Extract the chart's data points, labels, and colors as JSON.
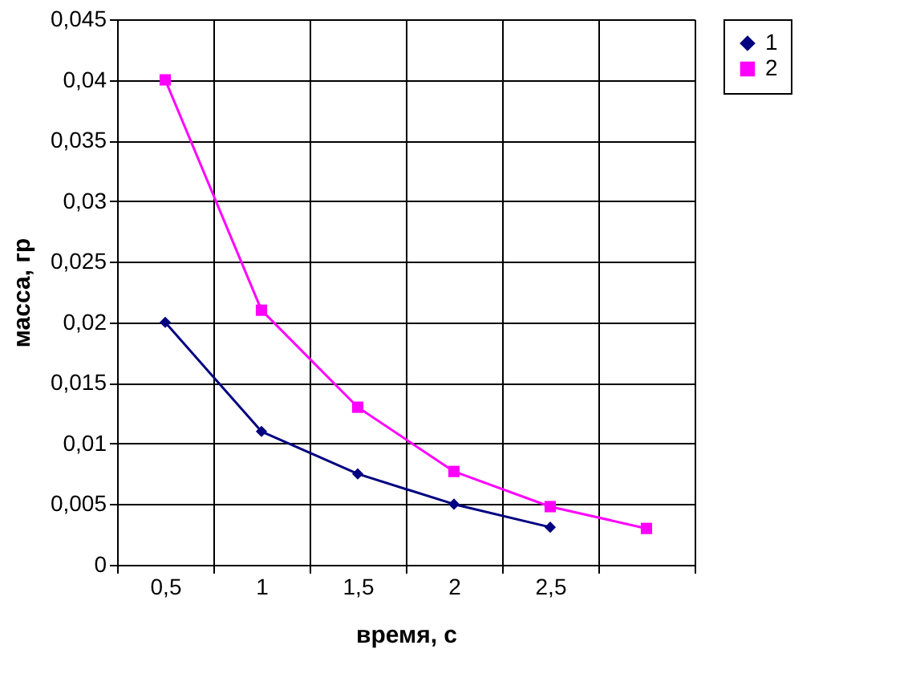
{
  "chart_data": {
    "type": "line",
    "xlabel": "время, с",
    "ylabel": "масса, гр",
    "categories": [
      "0,5",
      "1",
      "1,5",
      "2",
      "2,5",
      null
    ],
    "series": [
      {
        "name": "1",
        "color": "#000080",
        "marker": "diamond",
        "values": [
          0.02,
          0.011,
          0.0075,
          0.005,
          0.0031,
          null
        ]
      },
      {
        "name": "2",
        "color": "#ff00ff",
        "marker": "square",
        "values": [
          0.04,
          0.021,
          0.013,
          0.0077,
          0.0048,
          0.003
        ]
      }
    ],
    "ylim": [
      0,
      0.045
    ],
    "yticks": [
      {
        "value": 0,
        "label": "0"
      },
      {
        "value": 0.005,
        "label": "0,005"
      },
      {
        "value": 0.01,
        "label": "0,01"
      },
      {
        "value": 0.015,
        "label": "0,015"
      },
      {
        "value": 0.02,
        "label": "0,02"
      },
      {
        "value": 0.025,
        "label": "0,025"
      },
      {
        "value": 0.03,
        "label": "0,03"
      },
      {
        "value": 0.035,
        "label": "0,035"
      },
      {
        "value": 0.04,
        "label": "0,04"
      },
      {
        "value": 0.045,
        "label": "0,045"
      }
    ],
    "grid": true,
    "legend": "right"
  }
}
